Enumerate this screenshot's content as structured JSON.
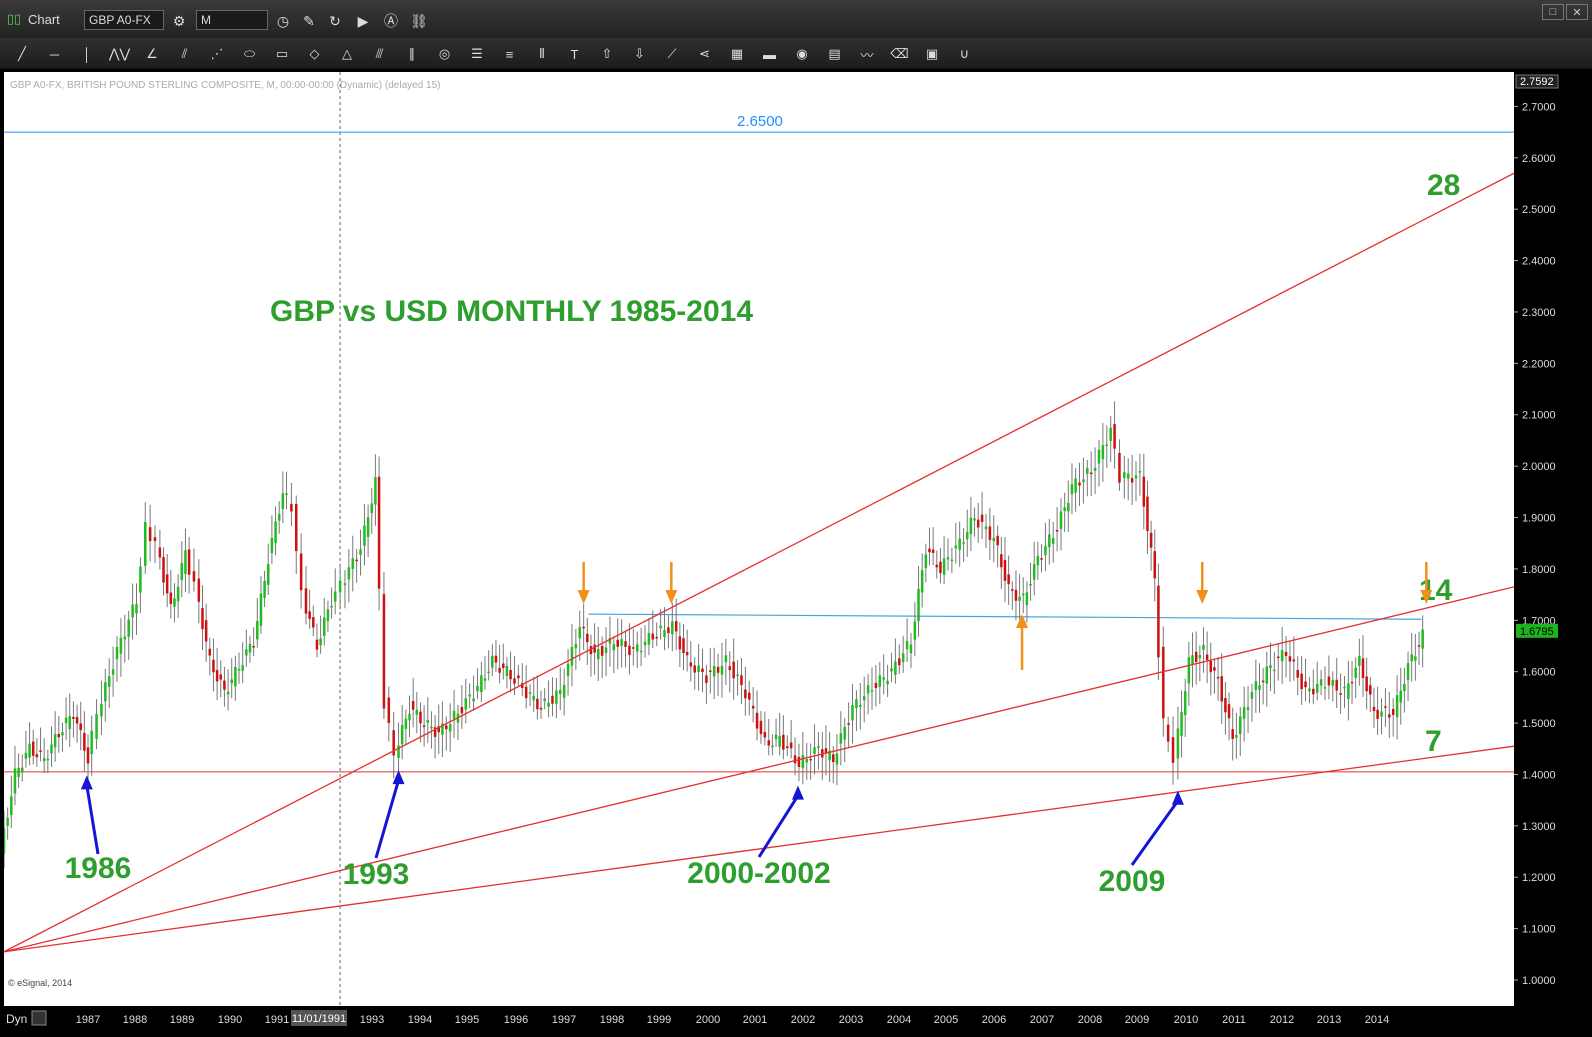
{
  "window": {
    "title": "Chart",
    "symbol": "GBP A0-FX",
    "interval": "M"
  },
  "toolbar": {
    "icons": [
      "line-icon",
      "horizontal-line-icon",
      "vertical-line-icon",
      "zigzag-icon",
      "angle-icon",
      "fibonacci-fan-icon",
      "gann-fan-icon",
      "ellipse-icon",
      "rectangle-icon",
      "diamond-icon",
      "triangle-icon",
      "channel-icon",
      "parallel-lines-icon",
      "circle-icon",
      "horizontal-lines-icon",
      "levels-icon",
      "vertical-bars-icon",
      "text-icon",
      "arrow-up-icon",
      "arrow-down-icon",
      "trend-angle-icon",
      "andrews-icon",
      "grid-icon",
      "mob-icon",
      "eye-icon",
      "pti-icon",
      "wave-icon",
      "eraser-icon",
      "comment-icon",
      "magnet-icon"
    ]
  },
  "chart_data": {
    "type": "candlestick",
    "title": "GBP vs USD MONTHLY 1985-2014",
    "header": "GBP A0-FX, BRITISH POUND STERLING COMPOSITE, M, 00:00-00:00 (Dynamic) (delayed 15)",
    "copyright": "© eSignal, 2014",
    "ylim": [
      1.0,
      2.7592
    ],
    "y_ticks": [
      "1.0000",
      "1.1000",
      "1.2000",
      "1.3000",
      "1.4000",
      "1.5000",
      "1.6000",
      "1.7000",
      "1.8000",
      "1.9000",
      "2.0000",
      "2.1000",
      "2.2000",
      "2.3000",
      "2.4000",
      "2.5000",
      "2.6000",
      "2.7000"
    ],
    "y_top_label": "2.7592",
    "last_price": "1.6795",
    "x_ticks": [
      "1987",
      "1988",
      "1989",
      "1990",
      "1991",
      "1993",
      "1994",
      "1995",
      "1996",
      "1997",
      "1998",
      "1999",
      "2000",
      "2001",
      "2002",
      "2003",
      "2004",
      "2005",
      "2006",
      "2007",
      "2008",
      "2009",
      "2010",
      "2011",
      "2012",
      "2013",
      "2014"
    ],
    "x_cursor_label": "11/01/1991",
    "x_left_label": "Dyn",
    "horizontal_levels": [
      {
        "value": 2.65,
        "label": "2.6500",
        "color": "#1e90ff"
      },
      {
        "value": 1.405,
        "label": "",
        "color": "#e53030"
      }
    ],
    "resistance_line": {
      "from": [
        1997.0,
        1.712
      ],
      "to": [
        2014.1,
        1.702
      ],
      "color": "#4aa3e0"
    },
    "fan_lines": [
      {
        "label": "28",
        "from": [
          1985.0,
          1.055
        ],
        "to": [
          2016.0,
          2.57
        ]
      },
      {
        "label": "14",
        "from": [
          1985.0,
          1.055
        ],
        "to": [
          2016.0,
          1.765
        ]
      },
      {
        "label": "7",
        "from": [
          1985.0,
          1.055
        ],
        "to": [
          2016.0,
          1.455
        ]
      }
    ],
    "low_annotations": [
      {
        "label": "1986",
        "date": 1986.7,
        "price": 1.41
      },
      {
        "label": "1993",
        "date": 1993.1,
        "price": 1.42
      },
      {
        "label": "2000-2002",
        "date": 2001.3,
        "price": 1.39
      },
      {
        "label": "2009",
        "date": 2009.1,
        "price": 1.38
      }
    ],
    "orange_down_arrows": [
      1996.9,
      1998.7,
      2009.6,
      2014.2
    ],
    "orange_up_arrows": [
      2005.9
    ],
    "series": [
      {
        "name": "GBP A0-FX",
        "points": [
          [
            1985.0,
            1.25
          ],
          [
            1985.3,
            1.4
          ],
          [
            1985.6,
            1.45
          ],
          [
            1985.9,
            1.43
          ],
          [
            1986.2,
            1.48
          ],
          [
            1986.5,
            1.52
          ],
          [
            1986.8,
            1.43
          ],
          [
            1987.0,
            1.52
          ],
          [
            1987.4,
            1.64
          ],
          [
            1987.8,
            1.74
          ],
          [
            1988.0,
            1.88
          ],
          [
            1988.2,
            1.85
          ],
          [
            1988.5,
            1.72
          ],
          [
            1988.8,
            1.83
          ],
          [
            1989.0,
            1.77
          ],
          [
            1989.3,
            1.62
          ],
          [
            1989.6,
            1.56
          ],
          [
            1989.9,
            1.61
          ],
          [
            1990.2,
            1.66
          ],
          [
            1990.5,
            1.82
          ],
          [
            1990.8,
            1.95
          ],
          [
            1991.0,
            1.92
          ],
          [
            1991.2,
            1.75
          ],
          [
            1991.5,
            1.65
          ],
          [
            1991.8,
            1.74
          ],
          [
            1992.0,
            1.77
          ],
          [
            1992.4,
            1.84
          ],
          [
            1992.7,
            1.97
          ],
          [
            1992.9,
            1.54
          ],
          [
            1993.1,
            1.44
          ],
          [
            1993.4,
            1.53
          ],
          [
            1993.7,
            1.5
          ],
          [
            1994.0,
            1.48
          ],
          [
            1994.4,
            1.52
          ],
          [
            1994.8,
            1.57
          ],
          [
            1995.1,
            1.62
          ],
          [
            1995.4,
            1.6
          ],
          [
            1995.8,
            1.56
          ],
          [
            1996.1,
            1.53
          ],
          [
            1996.5,
            1.56
          ],
          [
            1996.9,
            1.69
          ],
          [
            1997.2,
            1.63
          ],
          [
            1997.6,
            1.66
          ],
          [
            1998.0,
            1.64
          ],
          [
            1998.4,
            1.67
          ],
          [
            1998.8,
            1.69
          ],
          [
            1999.1,
            1.62
          ],
          [
            1999.5,
            1.59
          ],
          [
            1999.9,
            1.62
          ],
          [
            2000.3,
            1.56
          ],
          [
            2000.7,
            1.46
          ],
          [
            2001.0,
            1.47
          ],
          [
            2001.4,
            1.42
          ],
          [
            2001.8,
            1.45
          ],
          [
            2002.1,
            1.43
          ],
          [
            2002.5,
            1.53
          ],
          [
            2002.9,
            1.57
          ],
          [
            2003.3,
            1.6
          ],
          [
            2003.7,
            1.66
          ],
          [
            2004.0,
            1.84
          ],
          [
            2004.3,
            1.8
          ],
          [
            2004.7,
            1.85
          ],
          [
            2005.0,
            1.9
          ],
          [
            2005.4,
            1.86
          ],
          [
            2005.7,
            1.76
          ],
          [
            2006.0,
            1.74
          ],
          [
            2006.3,
            1.82
          ],
          [
            2006.7,
            1.88
          ],
          [
            2007.0,
            1.96
          ],
          [
            2007.4,
            1.99
          ],
          [
            2007.8,
            2.07
          ],
          [
            2008.0,
            1.98
          ],
          [
            2008.4,
            1.98
          ],
          [
            2008.7,
            1.78
          ],
          [
            2008.9,
            1.5
          ],
          [
            2009.1,
            1.43
          ],
          [
            2009.4,
            1.62
          ],
          [
            2009.7,
            1.64
          ],
          [
            2010.0,
            1.58
          ],
          [
            2010.3,
            1.47
          ],
          [
            2010.7,
            1.56
          ],
          [
            2011.0,
            1.6
          ],
          [
            2011.4,
            1.64
          ],
          [
            2011.8,
            1.56
          ],
          [
            2012.2,
            1.58
          ],
          [
            2012.6,
            1.56
          ],
          [
            2012.9,
            1.62
          ],
          [
            2013.2,
            1.52
          ],
          [
            2013.6,
            1.52
          ],
          [
            2013.9,
            1.61
          ],
          [
            2014.2,
            1.67
          ]
        ]
      }
    ]
  }
}
